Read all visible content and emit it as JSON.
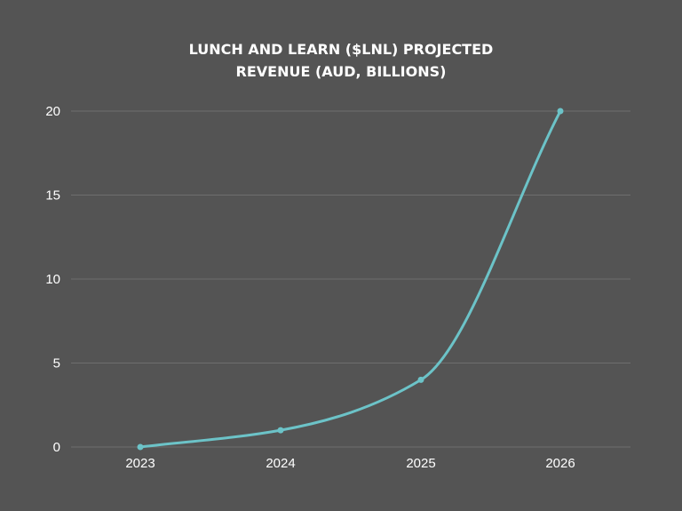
{
  "chart_data": {
    "type": "line",
    "title": "LUNCH AND LEARN ($LNL) PROJECTED REVENUE (AUD, BILLIONS)",
    "title_lines": [
      "LUNCH AND LEARN ($LNL) PROJECTED",
      "REVENUE (AUD, BILLIONS)"
    ],
    "categories": [
      "2023",
      "2024",
      "2025",
      "2026"
    ],
    "series": [
      {
        "values": [
          0,
          1,
          4,
          20
        ],
        "color": "#6cc3c8"
      }
    ],
    "yticks": [
      0,
      5,
      10,
      15,
      20
    ],
    "ytick_labels": [
      "0",
      "5",
      "10",
      "15",
      "20"
    ],
    "ylim": [
      0,
      20
    ],
    "xlabel": "",
    "ylabel": "",
    "grid": true,
    "legend": "none",
    "smooth": true,
    "colors": {
      "background": "#545454",
      "grid": "#6e6e6e",
      "text": "#ffffff",
      "line": "#6cc3c8"
    }
  }
}
